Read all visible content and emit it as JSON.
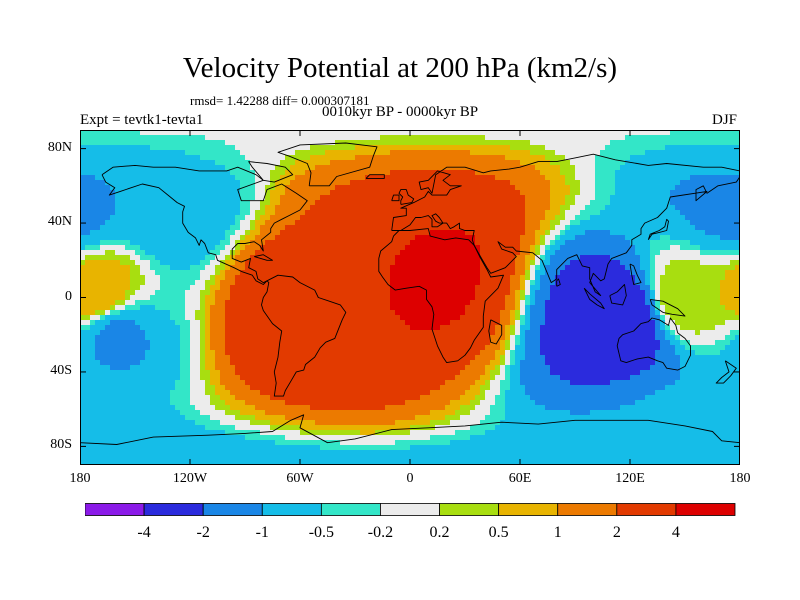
{
  "title": "Velocity Potential at 200 hPa (km2/s)",
  "stats_text": "rmsd= 1.42288 diff= 0.000307181",
  "period_text": "0010kyr BP - 0000kyr BP",
  "expt_text": "Expt = tevtk1-tevta1",
  "season": "DJF",
  "chart_data": {
    "type": "heatmap",
    "projection": "cylindrical-equidistant",
    "x_range": [
      -180,
      180
    ],
    "y_range": [
      -90,
      90
    ],
    "x_ticks": [
      {
        "value": -180,
        "label": "180"
      },
      {
        "value": -120,
        "label": "120W"
      },
      {
        "value": -60,
        "label": "60W"
      },
      {
        "value": 0,
        "label": "0"
      },
      {
        "value": 60,
        "label": "60E"
      },
      {
        "value": 120,
        "label": "120E"
      },
      {
        "value": 180,
        "label": "180"
      }
    ],
    "y_ticks": [
      {
        "value": 80,
        "label": "80N"
      },
      {
        "value": 40,
        "label": "40N"
      },
      {
        "value": 0,
        "label": "0"
      },
      {
        "value": -40,
        "label": "40S"
      },
      {
        "value": -80,
        "label": "80S"
      }
    ],
    "levels": [
      -4,
      -2,
      -1,
      -0.5,
      -0.2,
      0.2,
      0.5,
      1,
      2,
      4
    ],
    "level_labels": [
      "-4",
      "-2",
      "-1",
      "-0.5",
      "-0.2",
      "0.2",
      "0.5",
      "1",
      "2",
      "4"
    ],
    "colors": [
      "#8b1ae8",
      "#2b2bdd",
      "#1a86e6",
      "#15bde8",
      "#33e6c8",
      "#ececec",
      "#a8de10",
      "#e8b400",
      "#ec7a00",
      "#e23a00",
      "#dd0000"
    ],
    "field_centers": [
      {
        "lon": 5,
        "lat": 18,
        "value": 4.5
      },
      {
        "lon": -60,
        "lat": -8,
        "value": 3.6
      },
      {
        "lon": -20,
        "lat": 35,
        "value": 2.0
      },
      {
        "lon": 115,
        "lat": -12,
        "value": -3.2
      },
      {
        "lon": -160,
        "lat": -20,
        "value": -1.1
      },
      {
        "lon": -130,
        "lat": 45,
        "value": -0.9
      },
      {
        "lon": 175,
        "lat": 45,
        "value": -1.1
      },
      {
        "lon": 160,
        "lat": -65,
        "value": -0.9
      },
      {
        "lon": 150,
        "lat": 0,
        "value": 0.5
      },
      {
        "lon": -170,
        "lat": 3,
        "value": 0.9
      }
    ]
  }
}
